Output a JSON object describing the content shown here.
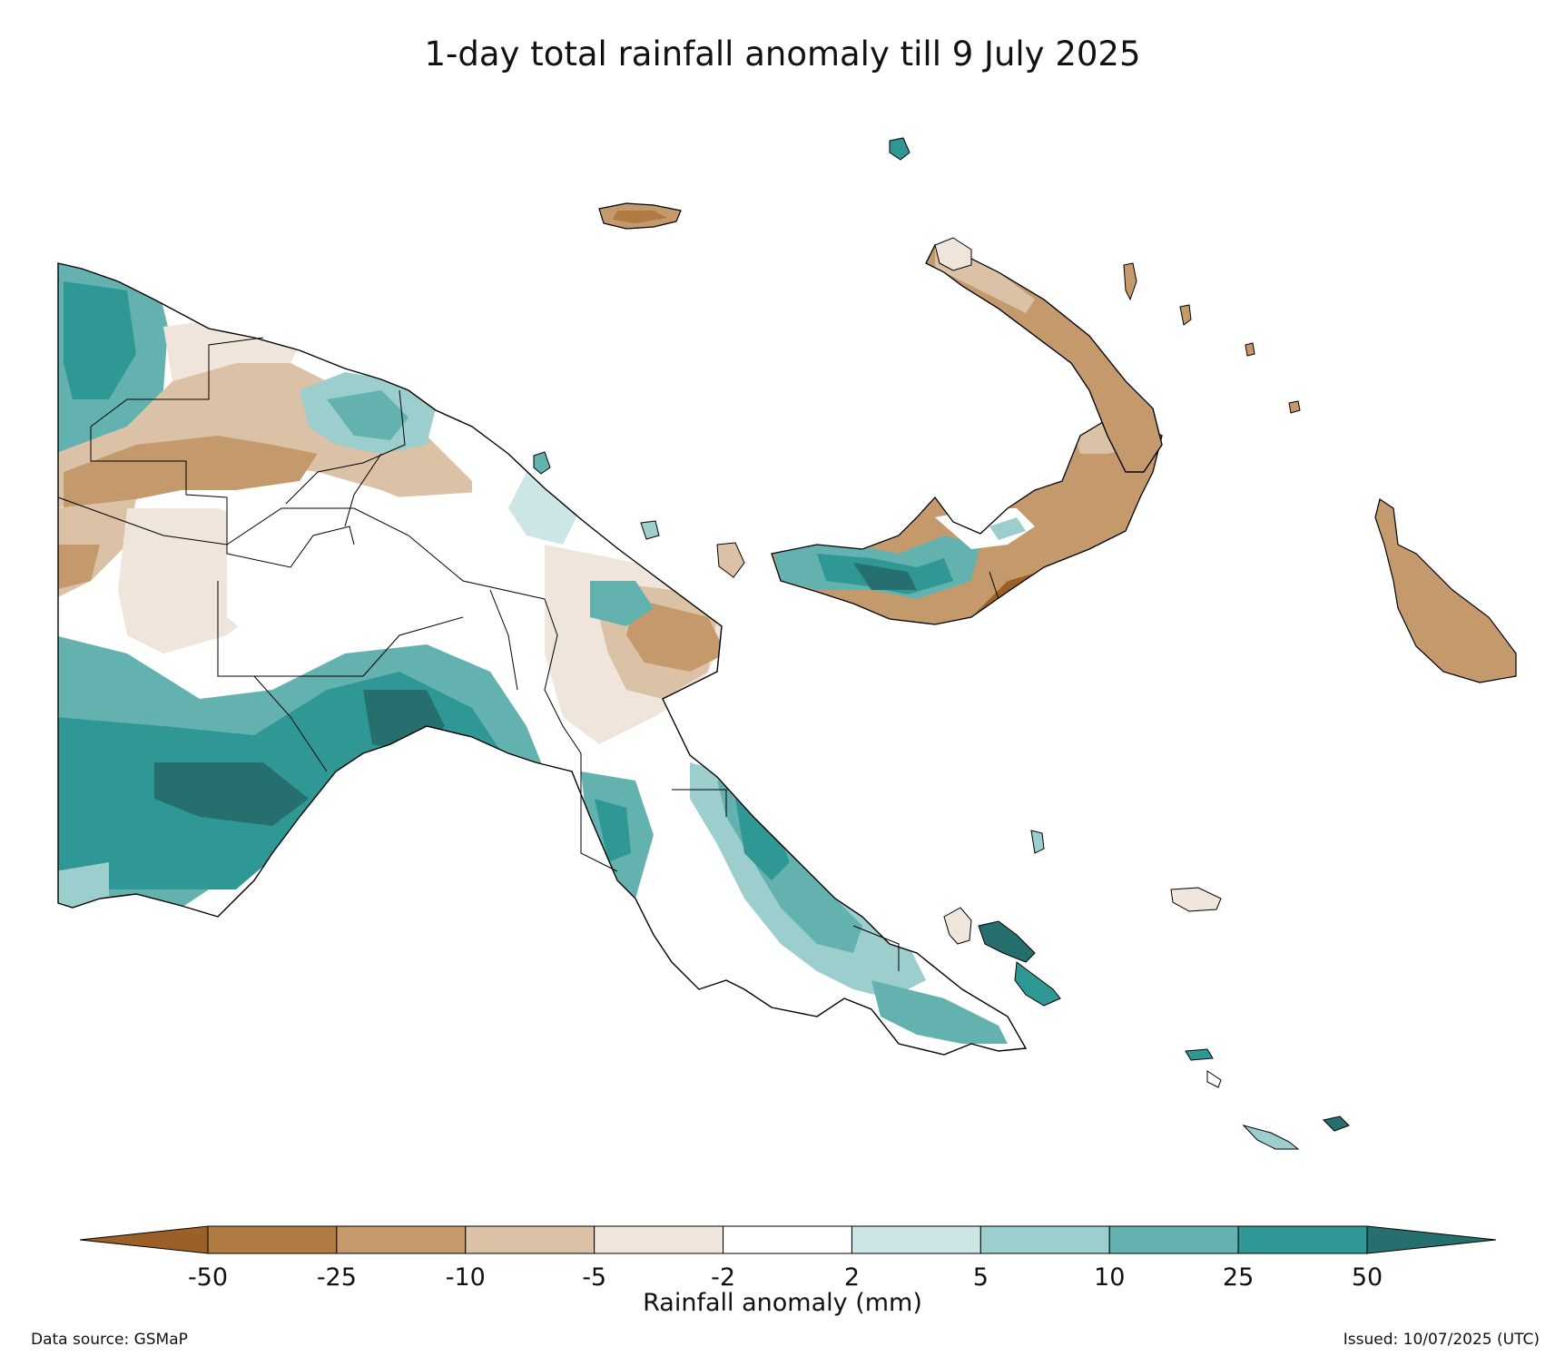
{
  "title": "1-day total rainfall anomaly till 9 July 2025",
  "colorbar": {
    "label": "Rainfall anomaly (mm)",
    "ticks": [
      "-50",
      "-25",
      "-10",
      "-5",
      "-2",
      "2",
      "5",
      "10",
      "25",
      "50"
    ],
    "colors": [
      "#9b5f28",
      "#b07a43",
      "#c49a6c",
      "#dbc1a6",
      "#efe5db",
      "#ffffff",
      "#cde6e5",
      "#9bcecc",
      "#63b2b0",
      "#2f9894",
      "#25706e"
    ],
    "extend": "both"
  },
  "footer": {
    "source": "Data source: GSMaP",
    "issued": "Issued: 10/07/2025 (UTC)"
  }
}
